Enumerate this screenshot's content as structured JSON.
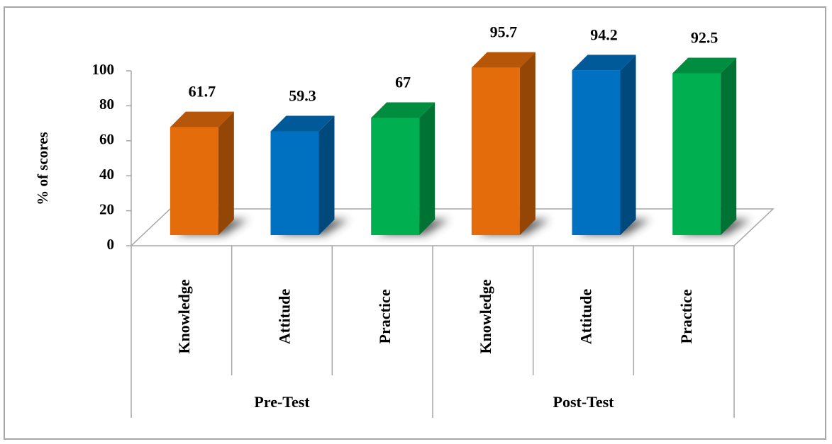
{
  "chart_data": {
    "type": "bar3d",
    "y_label": "% of scores",
    "categories": [
      "Knowledge",
      "Attitude",
      "Practice",
      "Knowledge",
      "Attitude",
      "Practice"
    ],
    "groups": [
      "Pre-Test",
      "Post-Test"
    ],
    "values": [
      61.7,
      59.3,
      67,
      95.7,
      94.2,
      92.5
    ],
    "colors": [
      "#e46c0a",
      "#0070c0",
      "#00b050",
      "#e46c0a",
      "#0070c0",
      "#00b050"
    ],
    "ylim": [
      0,
      100
    ],
    "yticks": [
      0,
      20,
      40,
      60,
      80,
      100
    ]
  }
}
